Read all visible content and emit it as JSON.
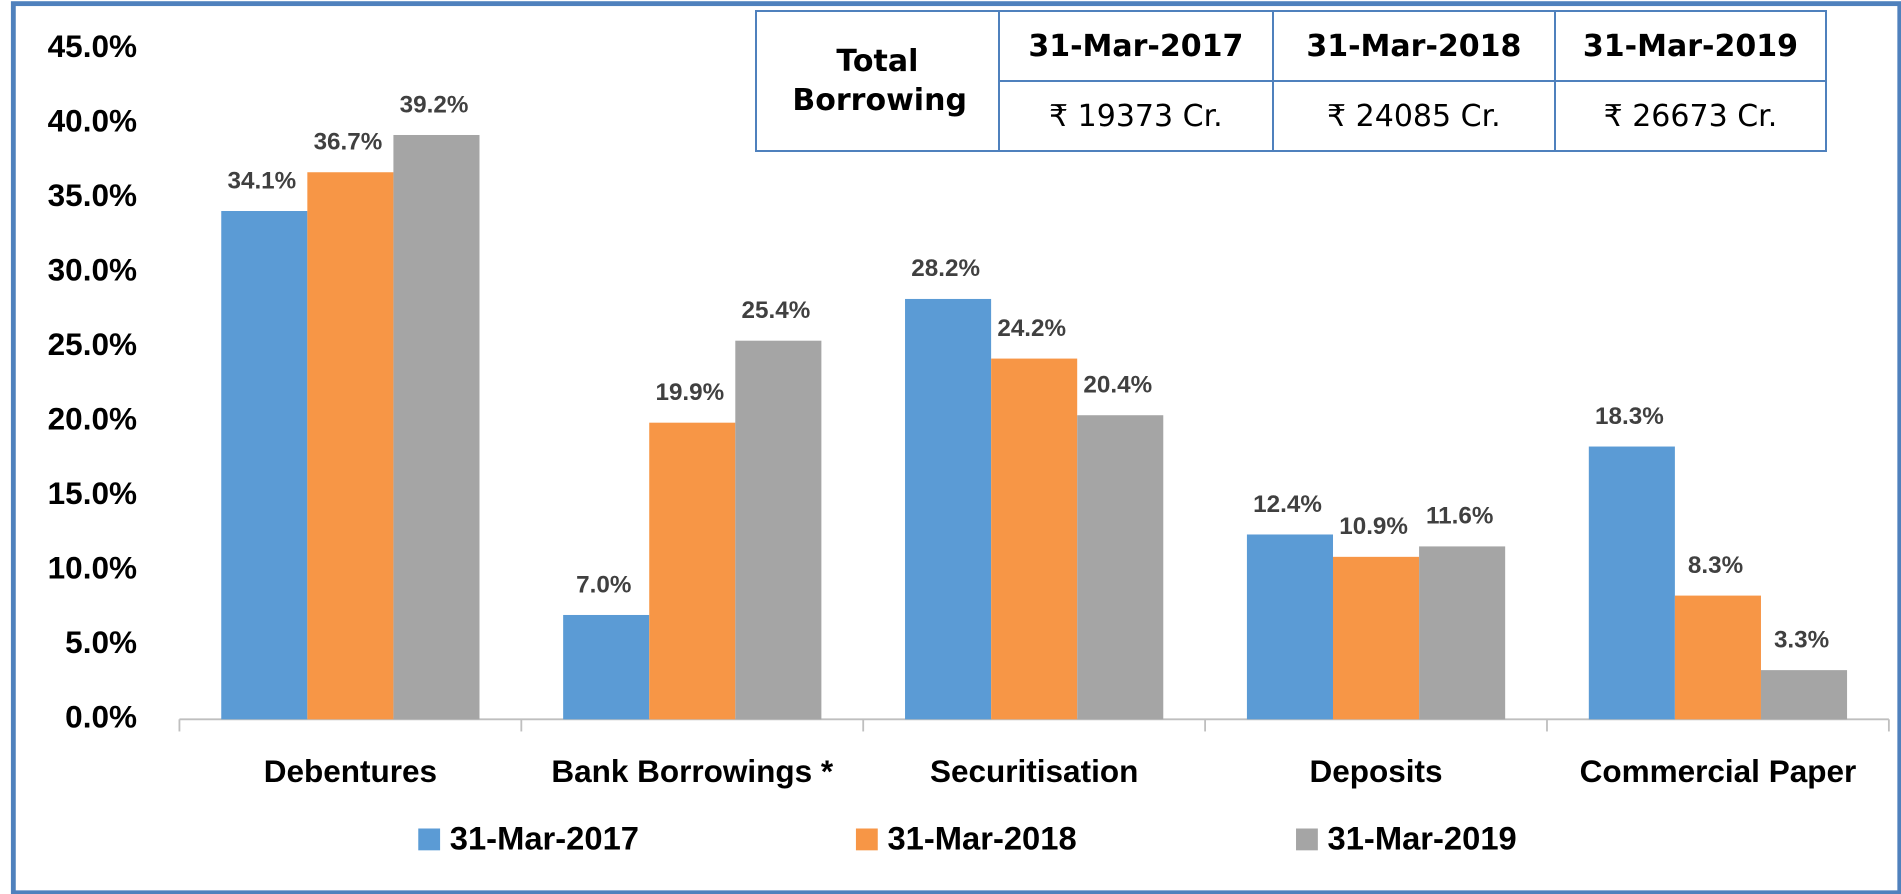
{
  "chart_data": {
    "type": "bar",
    "categories": [
      "Debentures",
      "Bank Borrowings *",
      "Securitisation",
      "Deposits",
      "Commercial Paper"
    ],
    "series": [
      {
        "name": "31-Mar-2017",
        "color": "#5b9bd5",
        "values": [
          34.1,
          7.0,
          28.2,
          12.4,
          18.3
        ],
        "value_labels": [
          "34.1%",
          "7.0%",
          "28.2%",
          "12.4%",
          "18.3%"
        ]
      },
      {
        "name": "31-Mar-2018",
        "color": "#f79646",
        "values": [
          36.7,
          19.9,
          24.2,
          10.9,
          8.3
        ],
        "value_labels": [
          "36.7%",
          "19.9%",
          "24.2%",
          "10.9%",
          "8.3%"
        ]
      },
      {
        "name": "31-Mar-2019",
        "color": "#a5a5a5",
        "values": [
          39.2,
          25.4,
          20.4,
          11.6,
          3.3
        ],
        "value_labels": [
          "39.2%",
          "25.4%",
          "20.4%",
          "11.6%",
          "3.3%"
        ]
      }
    ],
    "ylim": [
      0,
      45
    ],
    "yticks": [
      {
        "value": 0,
        "label": "0.0%"
      },
      {
        "value": 5,
        "label": "5.0%"
      },
      {
        "value": 10,
        "label": "10.0%"
      },
      {
        "value": 15,
        "label": "15.0%"
      },
      {
        "value": 20,
        "label": "20.0%"
      },
      {
        "value": 25,
        "label": "25.0%"
      },
      {
        "value": 30,
        "label": "30.0%"
      },
      {
        "value": 35,
        "label": "35.0%"
      },
      {
        "value": 40,
        "label": "40.0%"
      },
      {
        "value": 45,
        "label": "45.0%"
      }
    ],
    "grid": false,
    "legend": "bottom"
  },
  "table": {
    "row_header": "Total Borrowing",
    "columns": [
      "31-Mar-2017",
      "31-Mar-2018",
      "31-Mar-2019"
    ],
    "values": [
      "₹ 19373 Cr.",
      "₹ 24085 Cr.",
      "₹ 26673 Cr."
    ]
  }
}
